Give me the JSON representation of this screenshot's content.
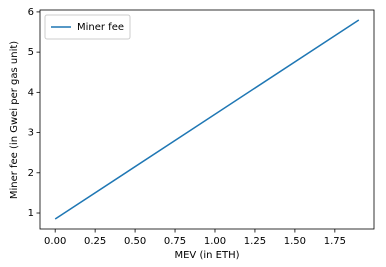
{
  "chart_data": {
    "type": "line",
    "x_label": "MEV (in ETH)",
    "y_label": "Miner fee (in Gwei per gas unit)",
    "x": [
      0,
      1.9
    ],
    "series": [
      {
        "name": "Miner fee",
        "color": "#1f77b4",
        "values": [
          0.85,
          5.8
        ]
      }
    ],
    "xlim": [
      -0.095,
      1.995
    ],
    "ylim": [
      0.6025,
      6.0475
    ],
    "xticks": [
      {
        "value": 0,
        "label": "0.00"
      },
      {
        "value": 0.25,
        "label": "0.25"
      },
      {
        "value": 0.5,
        "label": "0.50"
      },
      {
        "value": 0.75,
        "label": "0.75"
      },
      {
        "value": 1,
        "label": "1.00"
      },
      {
        "value": 1.25,
        "label": "1.25"
      },
      {
        "value": 1.5,
        "label": "1.50"
      },
      {
        "value": 1.75,
        "label": "1.75"
      }
    ],
    "yticks": [
      1,
      2,
      3,
      4,
      5,
      6
    ],
    "grid": false,
    "legend": "upper left"
  }
}
